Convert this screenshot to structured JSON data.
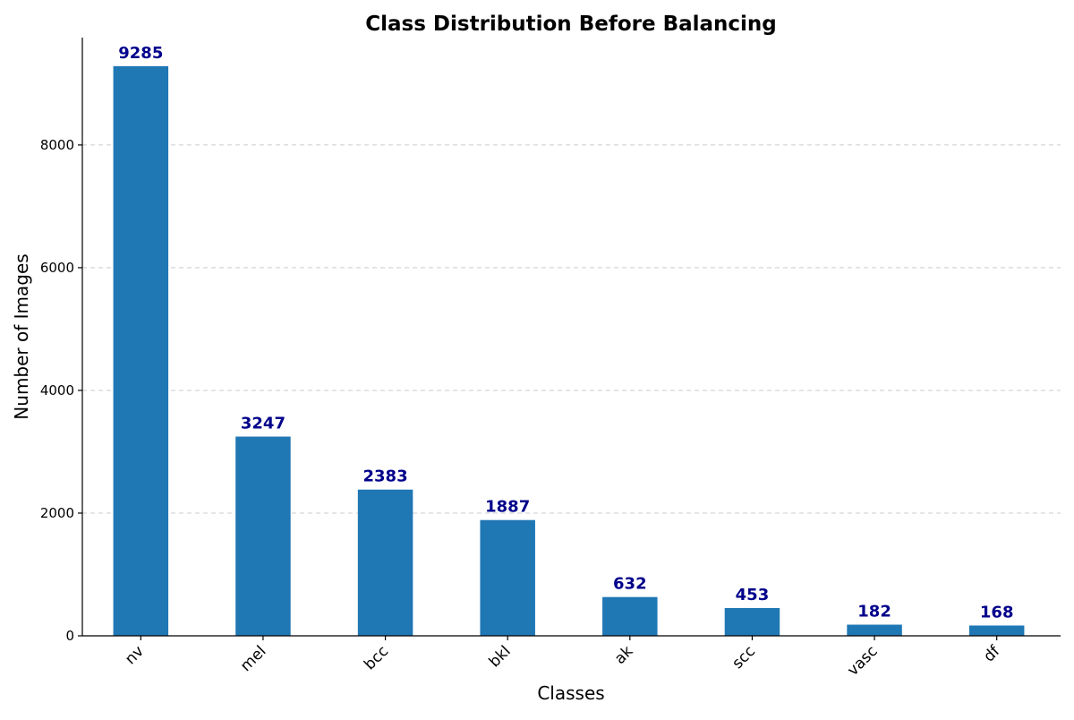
{
  "chart_data": {
    "type": "bar",
    "title": "Class Distribution Before Balancing",
    "xlabel": "Classes",
    "ylabel": "Number of Images",
    "categories": [
      "nv",
      "mel",
      "bcc",
      "bkl",
      "ak",
      "scc",
      "vasc",
      "df"
    ],
    "values": [
      9285,
      3247,
      2383,
      1887,
      632,
      453,
      182,
      168
    ],
    "value_labels": [
      "9285",
      "3247",
      "2383",
      "1887",
      "632",
      "453",
      "182",
      "168"
    ],
    "y_ticks": [
      0,
      2000,
      4000,
      6000,
      8000
    ],
    "y_tick_labels": [
      "0",
      "2000",
      "4000",
      "6000",
      "8000"
    ],
    "ylim": [
      0,
      9750
    ],
    "grid": "y-dashed",
    "bar_color": "#1f77b4",
    "value_label_color": "#00008b",
    "x_tick_rotation_deg": 45
  }
}
